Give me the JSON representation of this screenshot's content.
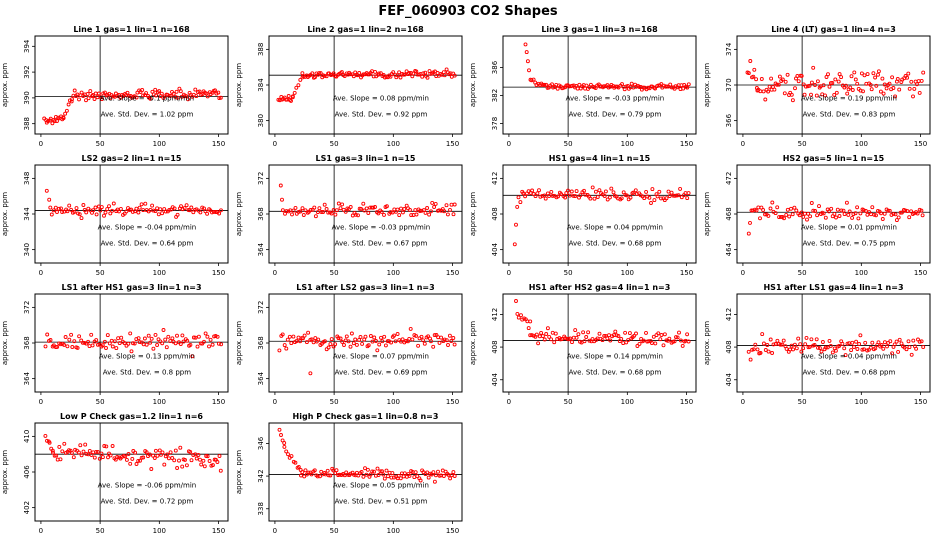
{
  "page_title": "FEF_060903  CO2 Shapes",
  "style": {
    "point_color": "#ff0000",
    "axis_color": "#000000",
    "background": "#ffffff"
  },
  "chart_data": [
    {
      "type": "scatter",
      "title": "Line 1 gas=1 lin=1 n=168",
      "ylabel": "approx. ppm",
      "xlim": [
        -5,
        158
      ],
      "xticks": [
        0,
        50,
        100,
        150
      ],
      "ylim": [
        387.2,
        394.8
      ],
      "yticks": [
        388,
        390,
        392,
        394
      ],
      "vline": 50,
      "hline": 390.1,
      "annotations": [
        "Ave. Slope =  -0.1  ppm/min",
        "Ave. Std. Dev. =  1.02  ppm"
      ],
      "segments": [
        {
          "x0": 3,
          "x1": 19,
          "y0": 388.25,
          "y1": 388.3,
          "n": 16,
          "sd": 0.12
        },
        {
          "x0": 19,
          "x1": 26,
          "y0": 388.5,
          "y1": 390.0,
          "n": 6,
          "sd": 0.12
        },
        {
          "x0": 26,
          "x1": 152,
          "y0": 390.15,
          "y1": 390.35,
          "n": 105,
          "sd": 0.18
        }
      ],
      "outliers": []
    },
    {
      "type": "scatter",
      "title": "Line 2 gas=1 lin=2 n=168",
      "ylabel": "approx. ppm",
      "xlim": [
        -5,
        158
      ],
      "xticks": [
        0,
        50,
        100,
        150
      ],
      "ylim": [
        378.5,
        389.5
      ],
      "yticks": [
        380,
        384,
        388
      ],
      "vline": 50,
      "hline": 385.1,
      "annotations": [
        "Ave. Slope =  0.08  ppm/min",
        "Ave. Std. Dev. =  0.92  ppm"
      ],
      "segments": [
        {
          "x0": 3,
          "x1": 15,
          "y0": 382.4,
          "y1": 382.5,
          "n": 12,
          "sd": 0.15
        },
        {
          "x0": 15,
          "x1": 23,
          "y0": 382.8,
          "y1": 384.9,
          "n": 6,
          "sd": 0.12
        },
        {
          "x0": 23,
          "x1": 152,
          "y0": 385.1,
          "y1": 385.2,
          "n": 108,
          "sd": 0.2
        }
      ],
      "outliers": []
    },
    {
      "type": "scatter",
      "title": "Line 3 gas=1 lin=3 n=168",
      "ylabel": "approx. ppm",
      "xlim": [
        -5,
        158
      ],
      "xticks": [
        0,
        50,
        100,
        150
      ],
      "ylim": [
        376.5,
        390.5
      ],
      "yticks": [
        378,
        382,
        386
      ],
      "vline": 50,
      "hline": 383.2,
      "annotations": [
        "Ave. Slope =  -0.03  ppm/min",
        "Ave. Std. Dev. =  0.79  ppm"
      ],
      "segments": [
        {
          "x0": 18,
          "x1": 30,
          "y0": 384.2,
          "y1": 383.4,
          "n": 10,
          "sd": 0.15
        },
        {
          "x0": 30,
          "x1": 152,
          "y0": 383.3,
          "y1": 383.2,
          "n": 100,
          "sd": 0.18
        }
      ],
      "outliers": [
        [
          14,
          389.3
        ],
        [
          15,
          388.2
        ],
        [
          16,
          386.9
        ],
        [
          17,
          385.6
        ]
      ]
    },
    {
      "type": "scatter",
      "title": "Line 4 (LT) gas=1 lin=4 n=3",
      "ylabel": "approx. ppm",
      "xlim": [
        -5,
        158
      ],
      "xticks": [
        0,
        50,
        100,
        150
      ],
      "ylim": [
        364.5,
        375.5
      ],
      "yticks": [
        366,
        370,
        374
      ],
      "vline": 50,
      "hline": 370.0,
      "annotations": [
        "Ave. Slope =  0.19  ppm/min",
        "Ave. Std. Dev. =  0.83  ppm"
      ],
      "segments": [
        {
          "x0": 4,
          "x1": 12,
          "y0": 372.2,
          "y1": 370.5,
          "n": 8,
          "sd": 0.5
        },
        {
          "x0": 12,
          "x1": 24,
          "y0": 369.6,
          "y1": 368.9,
          "n": 10,
          "sd": 0.5
        },
        {
          "x0": 24,
          "x1": 152,
          "y0": 370.0,
          "y1": 370.1,
          "n": 105,
          "sd": 0.75
        }
      ],
      "outliers": []
    },
    {
      "type": "scatter",
      "title": "LS2 gas=2 lin=1 n=15",
      "ylabel": "approx. ppm",
      "xlim": [
        -5,
        158
      ],
      "xticks": [
        0,
        50,
        100,
        150
      ],
      "ylim": [
        338.5,
        349.5
      ],
      "yticks": [
        340,
        344,
        348
      ],
      "vline": 50,
      "hline": 344.4,
      "annotations": [
        "Ave. Slope =  -0.04  ppm/min",
        "Ave. Std. Dev. =  0.64  ppm"
      ],
      "segments": [
        {
          "x0": 8,
          "x1": 152,
          "y0": 344.5,
          "y1": 344.3,
          "n": 100,
          "sd": 0.35
        }
      ],
      "outliers": [
        [
          5,
          346.6
        ],
        [
          7,
          345.6
        ]
      ]
    },
    {
      "type": "scatter",
      "title": "LS1 gas=3 lin=1 n=15",
      "ylabel": "approx. ppm",
      "xlim": [
        -5,
        158
      ],
      "xticks": [
        0,
        50,
        100,
        150
      ],
      "ylim": [
        362.5,
        373.5
      ],
      "yticks": [
        364,
        368,
        372
      ],
      "vline": 50,
      "hline": 368.3,
      "annotations": [
        "Ave. Slope =  -0.03  ppm/min",
        "Ave. Std. Dev. =  0.67  ppm"
      ],
      "segments": [
        {
          "x0": 7,
          "x1": 152,
          "y0": 368.4,
          "y1": 368.3,
          "n": 100,
          "sd": 0.35
        }
      ],
      "outliers": [
        [
          5,
          371.2
        ],
        [
          6,
          369.6
        ]
      ]
    },
    {
      "type": "scatter",
      "title": "HS1 gas=4 lin=1 n=15",
      "ylabel": "approx. ppm",
      "xlim": [
        -5,
        158
      ],
      "xticks": [
        0,
        50,
        100,
        150
      ],
      "ylim": [
        402.5,
        413.5
      ],
      "yticks": [
        404,
        408,
        412
      ],
      "vline": 50,
      "hline": 410.1,
      "annotations": [
        "Ave. Slope =  0.04  ppm/min",
        "Ave. Std. Dev. =  0.68  ppm"
      ],
      "segments": [
        {
          "x0": 8,
          "x1": 152,
          "y0": 410.2,
          "y1": 410.1,
          "n": 100,
          "sd": 0.35
        }
      ],
      "outliers": [
        [
          5,
          404.6
        ],
        [
          6,
          406.8
        ],
        [
          7,
          408.8
        ]
      ]
    },
    {
      "type": "scatter",
      "title": "HS2 gas=5 lin=1 n=15",
      "ylabel": "approx. ppm",
      "xlim": [
        -5,
        158
      ],
      "xticks": [
        0,
        50,
        100,
        150
      ],
      "ylim": [
        462.5,
        473.5
      ],
      "yticks": [
        464,
        468,
        472
      ],
      "vline": 50,
      "hline": 468.2,
      "annotations": [
        "Ave. Slope =  0.01  ppm/min",
        "Ave. Std. Dev. =  0.75  ppm"
      ],
      "segments": [
        {
          "x0": 7,
          "x1": 152,
          "y0": 468.3,
          "y1": 468.2,
          "n": 100,
          "sd": 0.4
        }
      ],
      "outliers": [
        [
          5,
          465.8
        ],
        [
          6,
          467.0
        ]
      ]
    },
    {
      "type": "scatter",
      "title": "LS1 after HS1 gas=3 lin=1 n=3",
      "ylabel": "approx. ppm",
      "xlim": [
        -5,
        158
      ],
      "xticks": [
        0,
        50,
        100,
        150
      ],
      "ylim": [
        362.5,
        373.5
      ],
      "yticks": [
        364,
        368,
        372
      ],
      "vline": 50,
      "hline": 368.1,
      "annotations": [
        "Ave. Slope =  0.13  ppm/min",
        "Ave. Std. Dev. =  0.8  ppm"
      ],
      "segments": [
        {
          "x0": 4,
          "x1": 152,
          "y0": 368.0,
          "y1": 368.2,
          "n": 105,
          "sd": 0.5
        }
      ],
      "outliers": []
    },
    {
      "type": "scatter",
      "title": "LS1 after LS2 gas=3 lin=1 n=3",
      "ylabel": "approx. ppm",
      "xlim": [
        -5,
        158
      ],
      "xticks": [
        0,
        50,
        100,
        150
      ],
      "ylim": [
        362.5,
        373.5
      ],
      "yticks": [
        364,
        368,
        372
      ],
      "vline": 50,
      "hline": 368.2,
      "annotations": [
        "Ave. Slope =  0.07  ppm/min",
        "Ave. Std. Dev. =  0.69  ppm"
      ],
      "segments": [
        {
          "x0": 4,
          "x1": 152,
          "y0": 368.1,
          "y1": 368.3,
          "n": 105,
          "sd": 0.5
        }
      ],
      "outliers": [
        [
          30,
          364.6
        ]
      ]
    },
    {
      "type": "scatter",
      "title": "HS1 after HS2 gas=4 lin=1 n=3",
      "ylabel": "approx. ppm",
      "xlim": [
        -5,
        158
      ],
      "xticks": [
        0,
        50,
        100,
        150
      ],
      "ylim": [
        402.5,
        414.5
      ],
      "yticks": [
        404,
        408,
        412
      ],
      "vline": 50,
      "hline": 408.8,
      "annotations": [
        "Ave. Slope =  0.14  ppm/min",
        "Ave. Std. Dev. =  0.68  ppm"
      ],
      "segments": [
        {
          "x0": 6,
          "x1": 18,
          "y0": 413.2,
          "y1": 410.5,
          "n": 10,
          "sd": 0.5
        },
        {
          "x0": 18,
          "x1": 152,
          "y0": 409.3,
          "y1": 408.9,
          "n": 100,
          "sd": 0.5
        }
      ],
      "outliers": []
    },
    {
      "type": "scatter",
      "title": "HS1 after LS1 gas=4 lin=1 n=3",
      "ylabel": "approx. ppm",
      "xlim": [
        -5,
        158
      ],
      "xticks": [
        0,
        50,
        100,
        150
      ],
      "ylim": [
        402.5,
        414.5
      ],
      "yticks": [
        404,
        408,
        412
      ],
      "vline": 50,
      "hline": 408.2,
      "annotations": [
        "Ave. Slope =  0.04  ppm/min",
        "Ave. Std. Dev. =  0.68  ppm"
      ],
      "segments": [
        {
          "x0": 5,
          "x1": 15,
          "y0": 407.2,
          "y1": 407.8,
          "n": 8,
          "sd": 0.4
        },
        {
          "x0": 15,
          "x1": 152,
          "y0": 408.2,
          "y1": 408.3,
          "n": 100,
          "sd": 0.5
        }
      ],
      "outliers": []
    },
    {
      "type": "scatter",
      "title": "Low P Check gas=1.2 lin=1 n=6",
      "ylabel": "approx. ppm",
      "xlim": [
        -5,
        158
      ],
      "xticks": [
        0,
        50,
        100,
        150
      ],
      "ylim": [
        400.5,
        411.5
      ],
      "yticks": [
        402,
        406,
        410
      ],
      "vline": 50,
      "hline": 408.0,
      "annotations": [
        "Ave. Slope =  -0.06  ppm/min",
        "Ave. Std. Dev. =  0.72  ppm"
      ],
      "segments": [
        {
          "x0": 4,
          "x1": 10,
          "y0": 409.8,
          "y1": 408.6,
          "n": 6,
          "sd": 0.4
        },
        {
          "x0": 10,
          "x1": 152,
          "y0": 408.3,
          "y1": 407.4,
          "n": 105,
          "sd": 0.5
        }
      ],
      "outliers": []
    },
    {
      "type": "scatter",
      "title": "High P Check gas=1 lin=0.8 n=3",
      "ylabel": "approx. ppm",
      "xlim": [
        -5,
        158
      ],
      "xticks": [
        0,
        50,
        100,
        150
      ],
      "ylim": [
        336.5,
        348.5
      ],
      "yticks": [
        338,
        342,
        346
      ],
      "vline": 50,
      "hline": 342.2,
      "annotations": [
        "Ave. Slope =  0.05  ppm/min",
        "Ave. Std. Dev. =  0.51  ppm"
      ],
      "segments": [
        {
          "x0": 4,
          "x1": 8,
          "y0": 347.6,
          "y1": 346.2,
          "n": 4,
          "sd": 0.3
        },
        {
          "x0": 8,
          "x1": 22,
          "y0": 345.5,
          "y1": 342.8,
          "n": 10,
          "sd": 0.3
        },
        {
          "x0": 22,
          "x1": 152,
          "y0": 342.4,
          "y1": 342.2,
          "n": 100,
          "sd": 0.35
        }
      ],
      "outliers": []
    }
  ]
}
